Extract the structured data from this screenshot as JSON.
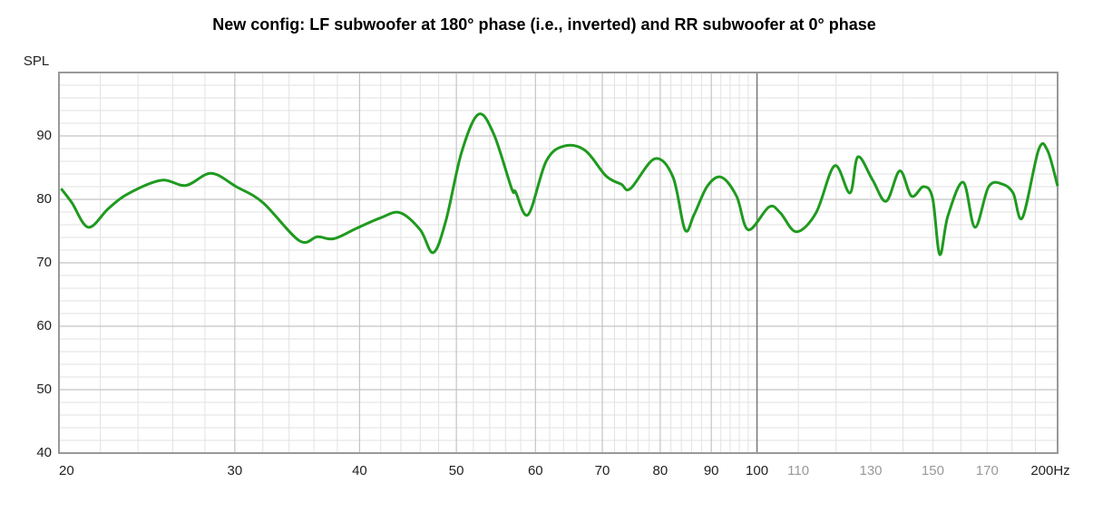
{
  "chart_data": {
    "type": "line",
    "title": "New config: LF subwoofer at 180° phase (i.e., inverted) and RR subwoofer at 0° phase",
    "y_label": "SPL",
    "x_scale": "log",
    "xlim": [
      20,
      200
    ],
    "ylim": [
      40,
      100
    ],
    "xticks": [
      20,
      30,
      40,
      50,
      60,
      70,
      80,
      90,
      100,
      110,
      130,
      150,
      170,
      {
        "value": 200,
        "label": "200Hz"
      }
    ],
    "yticks": [
      40,
      50,
      60,
      70,
      80,
      90
    ],
    "xminor_ticks": [
      22,
      24,
      26,
      28,
      32,
      34,
      36,
      38,
      42,
      44,
      46,
      48,
      52,
      54,
      56,
      58,
      62,
      64,
      66,
      68,
      72,
      74,
      76,
      78,
      82,
      84,
      86,
      88,
      92,
      94,
      96,
      98,
      120,
      140,
      160,
      180,
      190
    ],
    "yminor_ticks": [
      42,
      44,
      46,
      48,
      52,
      54,
      56,
      58,
      62,
      64,
      66,
      68,
      72,
      74,
      76,
      78,
      82,
      84,
      86,
      88,
      92,
      94,
      96,
      98
    ],
    "grid": true,
    "series": [
      {
        "name": "SPL",
        "color": "#1f9a1f",
        "x": [
          20.1,
          20.6,
          21.4,
          22.4,
          23.4,
          25.3,
          26.8,
          28.4,
          30.1,
          32.0,
          34.8,
          36.3,
          37.7,
          39.8,
          42.0,
          43.9,
          46.0,
          47.4,
          48.8,
          50.6,
          52.6,
          54.5,
          56.8,
          57.3,
          59.0,
          61.5,
          64.1,
          67.3,
          70.6,
          73.1,
          74.7,
          79.0,
          82.4,
          84.7,
          86.5,
          89.2,
          92.1,
          95.4,
          98.0,
          102.8,
          105.5,
          109.5,
          114.6,
          119.6,
          123.9,
          126.2,
          130.5,
          134.7,
          139.0,
          142.8,
          146.8,
          149.9,
          152.4,
          155.3,
          160.9,
          165.3,
          170.6,
          176.1,
          180.5,
          184.4,
          191.4,
          195.4,
          200
        ],
        "values": [
          81.7,
          79.5,
          75.6,
          78.5,
          80.8,
          83.0,
          82.2,
          84.1,
          82.0,
          79.5,
          73.5,
          74.1,
          73.8,
          75.5,
          77.1,
          77.9,
          75.2,
          71.6,
          76.6,
          87.4,
          93.4,
          90.3,
          81.7,
          81.2,
          77.6,
          86.0,
          88.4,
          87.7,
          83.7,
          82.4,
          81.7,
          86.4,
          83.5,
          75.2,
          77.6,
          82.1,
          83.5,
          80.5,
          75.2,
          78.8,
          77.9,
          74.9,
          77.9,
          85.3,
          81.0,
          86.7,
          83.1,
          79.7,
          84.5,
          80.5,
          82.0,
          80.2,
          71.3,
          77.4,
          82.7,
          75.6,
          82.0,
          82.4,
          81.0,
          77.1,
          87.8,
          87.7,
          82.1
        ]
      }
    ]
  }
}
